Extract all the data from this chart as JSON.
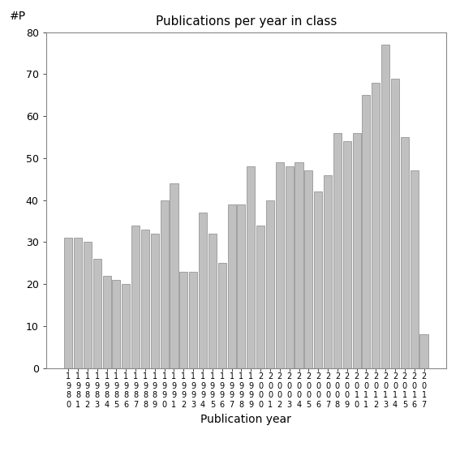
{
  "title": "Publications per year in class",
  "xlabel": "Publication year",
  "ylabel": "#P",
  "years": [
    "1980",
    "1981",
    "1982",
    "1983",
    "1984",
    "1985",
    "1986",
    "1987",
    "1988",
    "1989",
    "1990",
    "1991",
    "1992",
    "1993",
    "1994",
    "1995",
    "1996",
    "1997",
    "1998",
    "1999",
    "2000",
    "2001",
    "2002",
    "2003",
    "2004",
    "2005",
    "2006",
    "2007",
    "2008",
    "2009",
    "2010",
    "2011",
    "2012",
    "2013",
    "2014",
    "2015",
    "2016",
    "2017"
  ],
  "values": [
    31,
    31,
    30,
    26,
    22,
    21,
    20,
    34,
    33,
    32,
    40,
    44,
    23,
    23,
    37,
    32,
    25,
    39,
    39,
    48,
    34,
    40,
    49,
    48,
    49,
    47,
    42,
    46,
    56,
    54,
    56,
    65,
    68,
    77,
    69,
    55,
    47,
    8
  ],
  "bar_color": "#c0c0c0",
  "bar_edge_color": "#888888",
  "ylim": [
    0,
    80
  ],
  "yticks": [
    0,
    10,
    20,
    30,
    40,
    50,
    60,
    70,
    80
  ],
  "bg_color": "#ffffff",
  "title_fontsize": 11,
  "axis_label_fontsize": 10,
  "tick_fontsize": 9,
  "xtick_fontsize": 7
}
